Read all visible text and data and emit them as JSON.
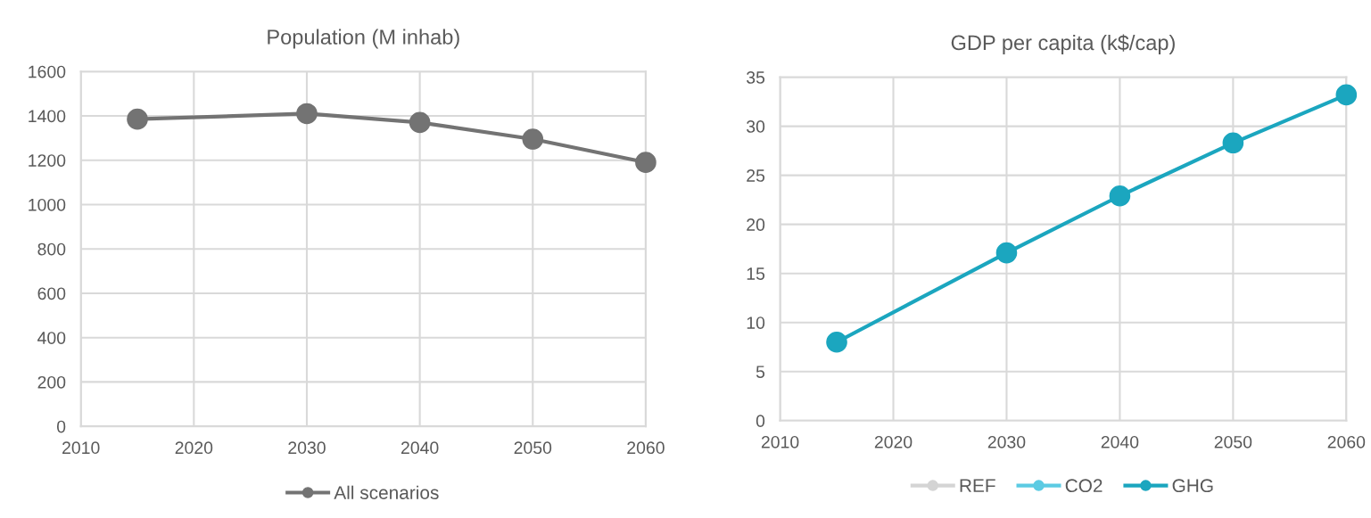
{
  "chart_data": [
    {
      "type": "line",
      "title": "Population (M inhab)",
      "x": [
        2015,
        2030,
        2040,
        2050,
        2060
      ],
      "series": [
        {
          "name": "All scenarios",
          "color": "#737373",
          "values": [
            1385,
            1410,
            1370,
            1295,
            1190
          ]
        }
      ],
      "xlim": [
        2010,
        2060
      ],
      "xticks": [
        2010,
        2020,
        2030,
        2040,
        2050,
        2060
      ],
      "ylim": [
        0,
        1600
      ],
      "yticks": [
        0,
        200,
        400,
        600,
        800,
        1000,
        1200,
        1400,
        1600
      ],
      "grid": true,
      "legend": "bottom",
      "marker": "circle",
      "line_style": "solid"
    },
    {
      "type": "line",
      "title": "GDP per capita (k$/cap)",
      "x": [
        2015,
        2030,
        2040,
        2050,
        2060
      ],
      "series": [
        {
          "name": "REF",
          "color": "#d4d4d4",
          "values": [
            null,
            null,
            null,
            null,
            null
          ]
        },
        {
          "name": "CO2",
          "color": "#5ccbe3",
          "values": [
            null,
            null,
            null,
            null,
            null
          ]
        },
        {
          "name": "GHG",
          "color": "#1ba6bf",
          "values": [
            8.0,
            17.1,
            22.9,
            28.3,
            33.2
          ]
        }
      ],
      "xlim": [
        2010,
        2060
      ],
      "xticks": [
        2010,
        2020,
        2030,
        2040,
        2050,
        2060
      ],
      "ylim": [
        0,
        35
      ],
      "yticks": [
        0,
        5,
        10,
        15,
        20,
        25,
        30,
        35
      ],
      "grid": true,
      "legend": "bottom",
      "marker": "circle",
      "line_style": "solid"
    }
  ]
}
